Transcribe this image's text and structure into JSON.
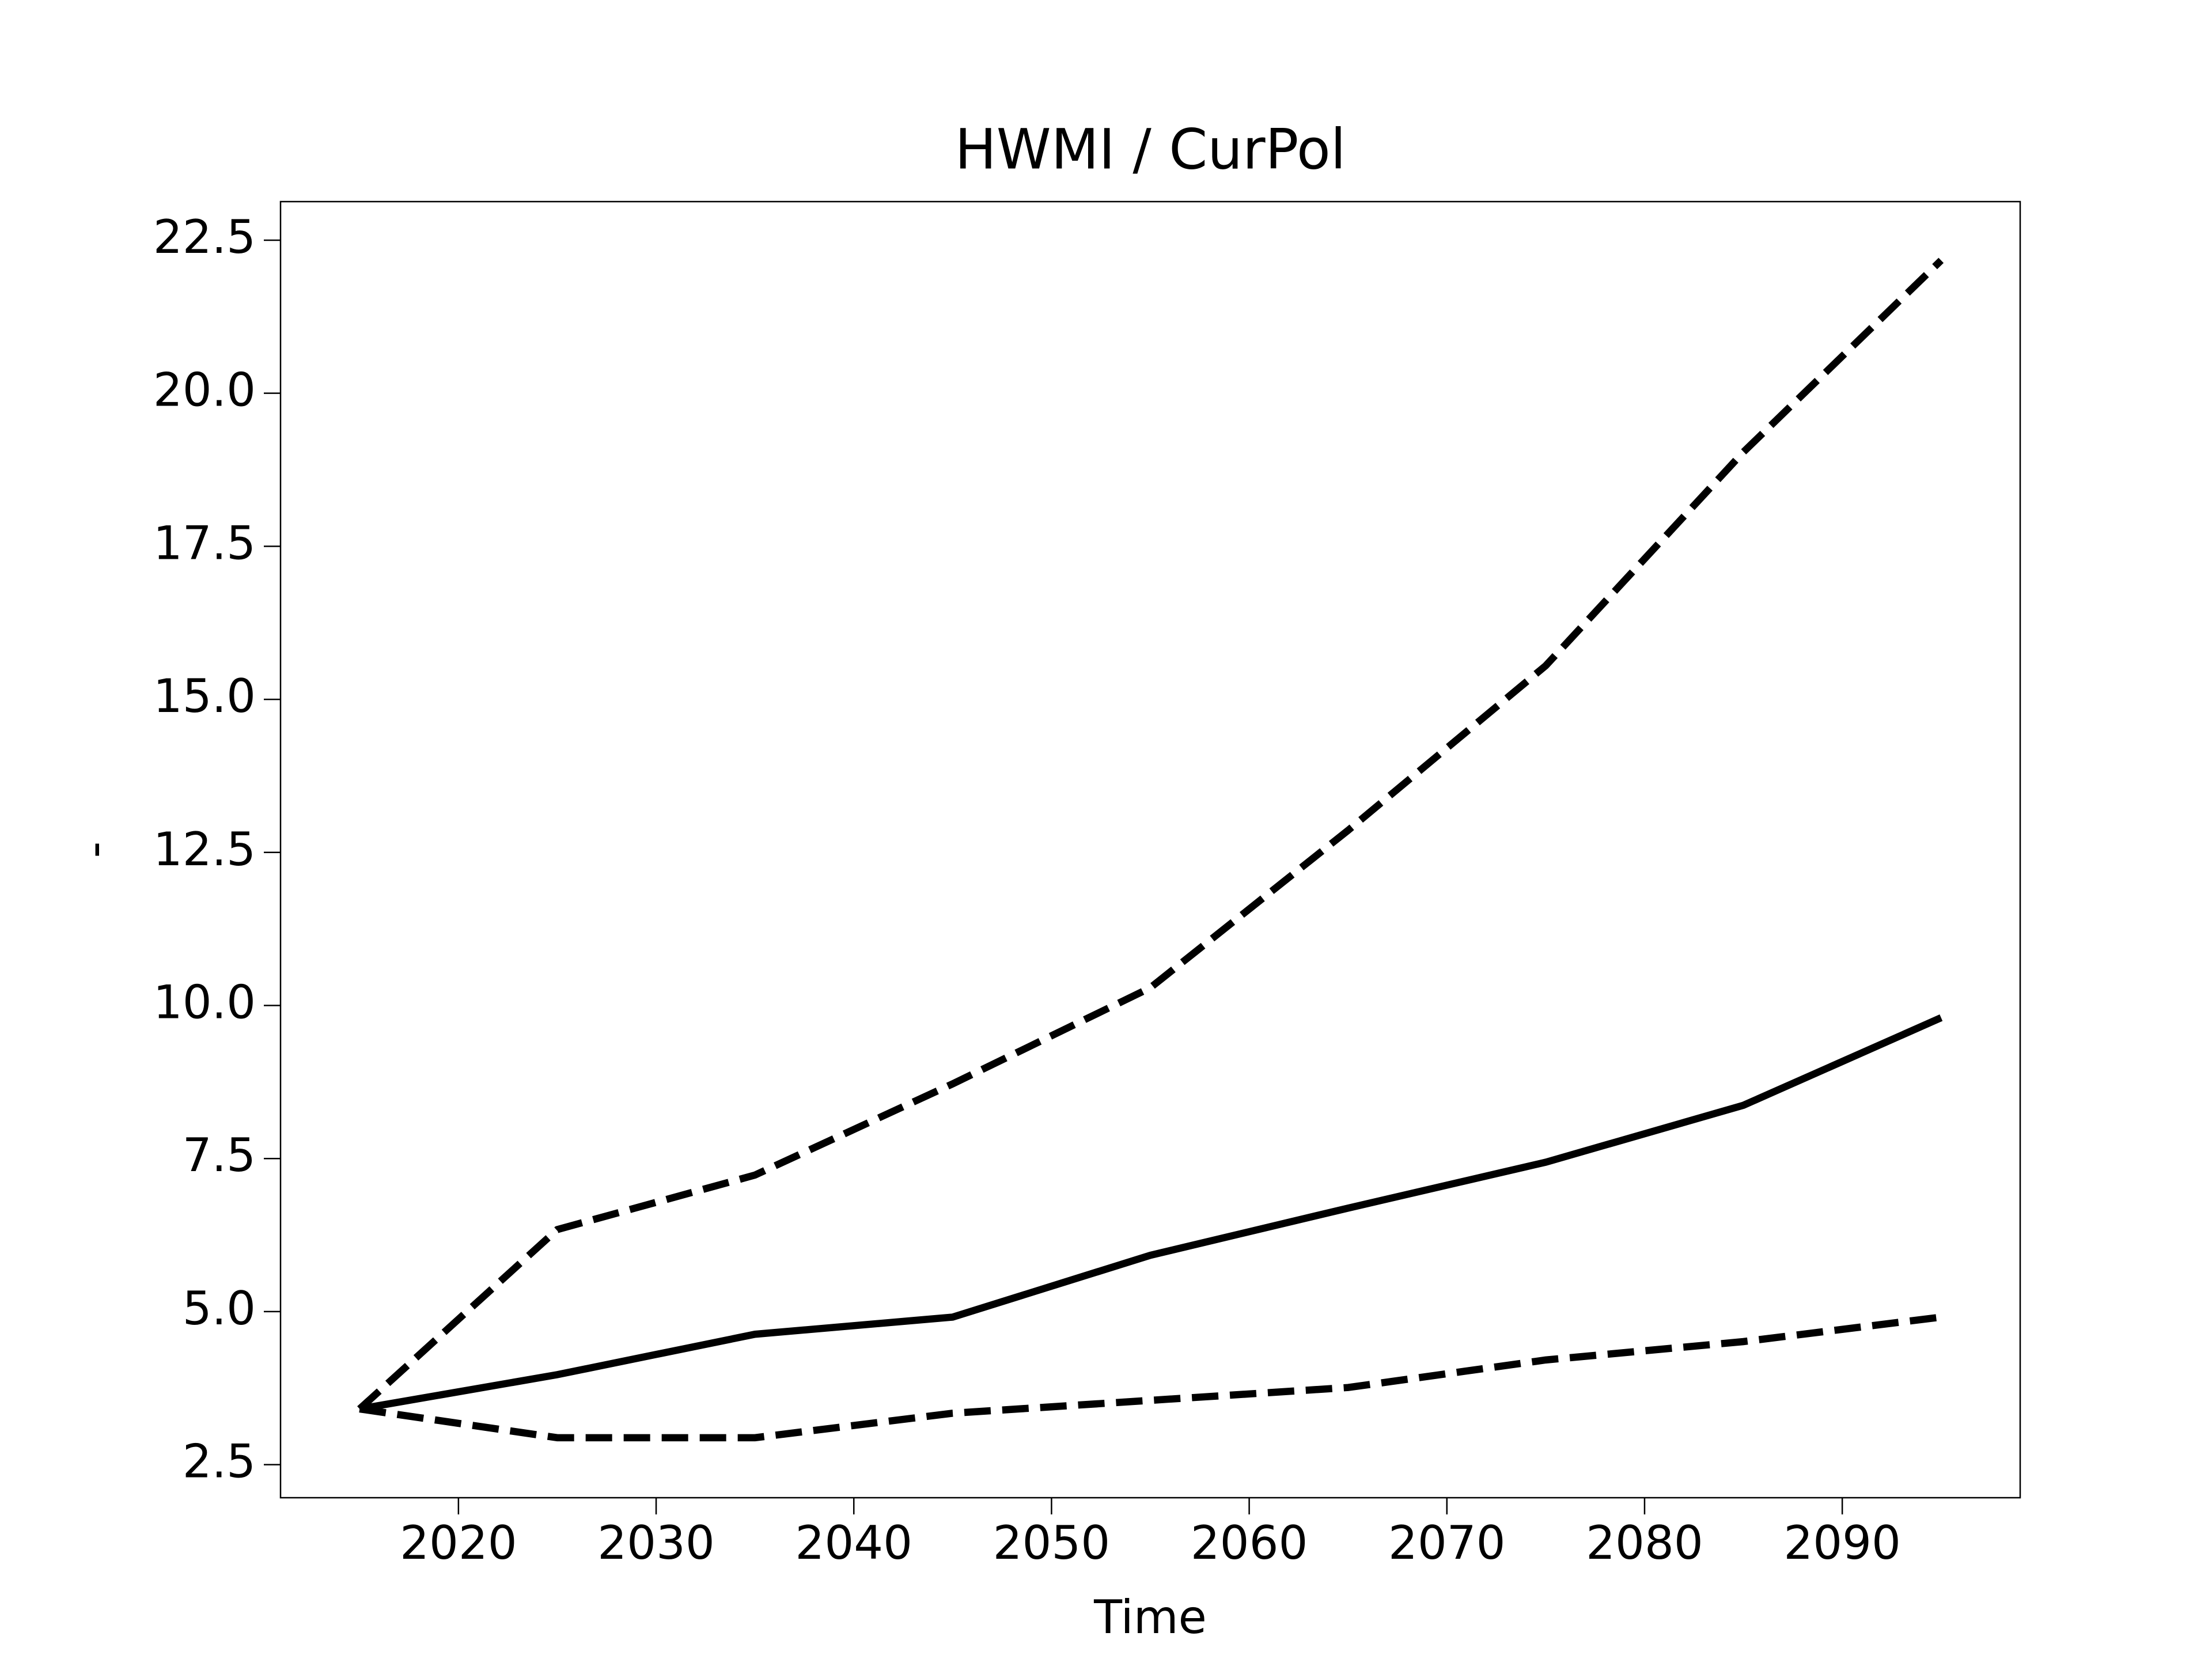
{
  "chart_data": {
    "type": "line",
    "title": "HWMI / CurPol",
    "x_label": "Time",
    "y_label": "-",
    "x": [
      2015,
      2025,
      2035,
      2045,
      2055,
      2065,
      2075,
      2085,
      2095
    ],
    "series": [
      {
        "color": "#000000",
        "dash": false,
        "values": [
          3.41,
          3.97,
          4.63,
          4.91,
          5.92,
          6.69,
          7.44,
          8.37,
          9.8
        ]
      },
      {
        "color": "#000000",
        "dash": true,
        "values": [
          3.41,
          6.34,
          7.23,
          8.72,
          10.29,
          12.86,
          15.55,
          19.04,
          22.17
        ]
      },
      {
        "color": "#000000",
        "dash": true,
        "values": [
          3.41,
          2.94,
          2.94,
          3.34,
          3.55,
          3.76,
          4.21,
          4.51,
          4.91
        ]
      }
    ],
    "xlim": [
      2011,
      2099
    ],
    "xticks": [
      2020,
      2030,
      2040,
      2050,
      2060,
      2070,
      2080,
      2090
    ],
    "ylim": [
      1.96,
      23.13
    ],
    "yticks": [
      2.5,
      {
        "value": 5,
        "label": "5.0"
      },
      7.5,
      {
        "value": 10,
        "label": "10.0"
      },
      12.5,
      {
        "value": 15,
        "label": "15.0"
      },
      17.5,
      {
        "value": 20,
        "label": "20.0"
      },
      22.5
    ],
    "grid": false
  }
}
